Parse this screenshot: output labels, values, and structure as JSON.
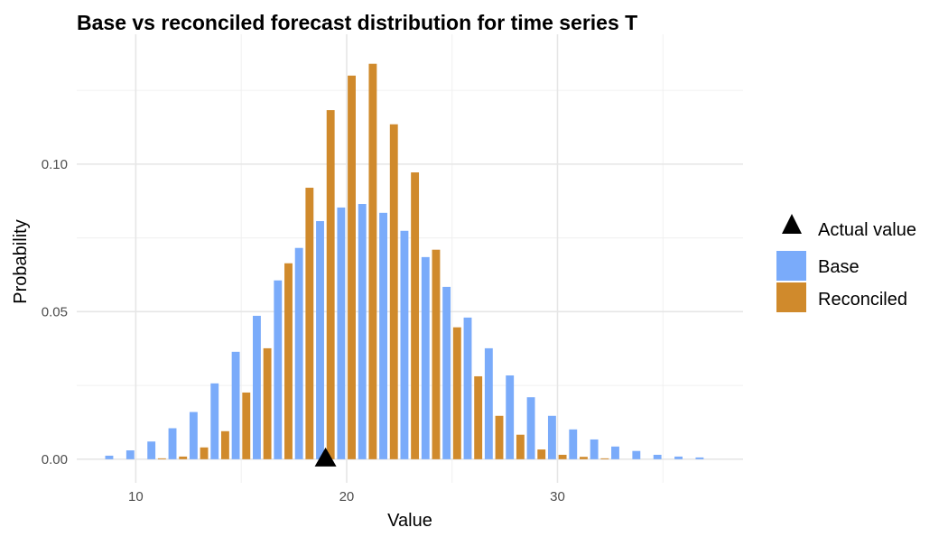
{
  "chart_data": {
    "type": "bar",
    "title": "Base vs reconciled forecast distribution for time series T",
    "xlabel": "Value",
    "ylabel": "Probability",
    "xlim": [
      7.2,
      38.8
    ],
    "ylim": [
      -0.008,
      0.144
    ],
    "xticks": [
      10,
      20,
      30
    ],
    "xtick_labels": [
      "10",
      "20",
      "30"
    ],
    "yticks": [
      0,
      0.05,
      0.1
    ],
    "ytick_labels": [
      "0.00",
      "0.05",
      "0.10"
    ],
    "grid": true,
    "legend_position": "right",
    "legend": [
      "Actual value",
      "Base",
      "Reconciled"
    ],
    "actual_value": 19,
    "series": [
      {
        "name": "Base",
        "color": "#7aabfa",
        "x": [
          9,
          10,
          11,
          12,
          13,
          14,
          15,
          16,
          17,
          18,
          19,
          20,
          21,
          22,
          23,
          24,
          25,
          26,
          27,
          28,
          29,
          30,
          31,
          32,
          33,
          34,
          35,
          36,
          37
        ],
        "values": [
          0.0012,
          0.003,
          0.006,
          0.0105,
          0.016,
          0.0257,
          0.0364,
          0.0486,
          0.0606,
          0.0716,
          0.0807,
          0.0853,
          0.0865,
          0.0835,
          0.0774,
          0.0685,
          0.0584,
          0.048,
          0.0376,
          0.0284,
          0.021,
          0.0147,
          0.0101,
          0.0067,
          0.0043,
          0.0028,
          0.0015,
          0.0009,
          0.0006
        ]
      },
      {
        "name": "Reconciled",
        "color": "#d08a2c",
        "x": [
          11,
          12,
          13,
          14,
          15,
          16,
          17,
          18,
          19,
          20,
          21,
          22,
          23,
          24,
          25,
          26,
          27,
          28,
          29,
          30,
          31,
          32
        ],
        "values": [
          0.0003,
          0.0009,
          0.004,
          0.0095,
          0.0226,
          0.0376,
          0.0664,
          0.092,
          0.1183,
          0.13,
          0.134,
          0.1135,
          0.0972,
          0.071,
          0.0447,
          0.0281,
          0.0147,
          0.0083,
          0.0033,
          0.0015,
          0.0008,
          0.0003
        ]
      }
    ]
  }
}
